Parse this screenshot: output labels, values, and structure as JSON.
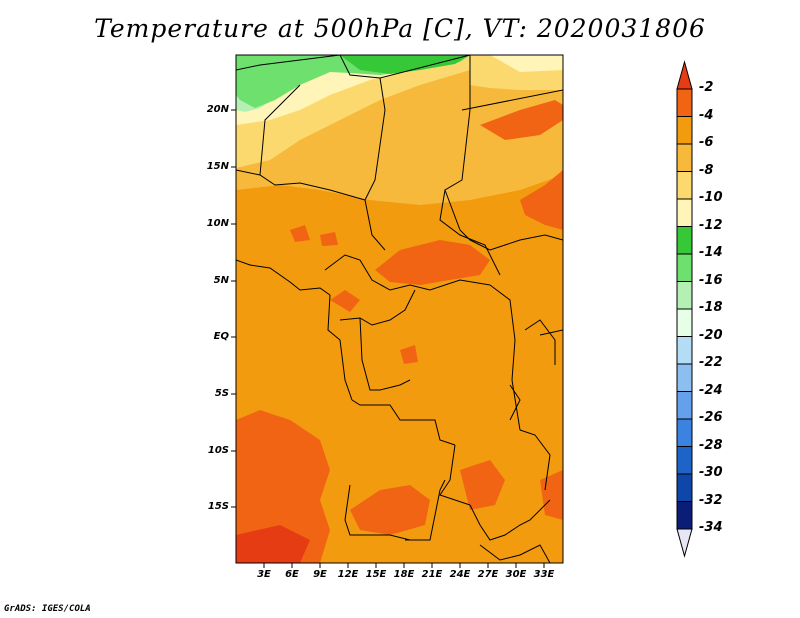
{
  "title": "Temperature at 500hPa [C], VT: 2020031806",
  "map": {
    "lat_labels": [
      "20N",
      "15N",
      "10N",
      "5N",
      "EQ",
      "5S",
      "10S",
      "15S"
    ],
    "lon_labels": [
      "3E",
      "6E",
      "9E",
      "12E",
      "15E",
      "18E",
      "21E",
      "24E",
      "27E",
      "30E",
      "33E"
    ]
  },
  "colorbar": {
    "labels": [
      "-2",
      "-4",
      "-6",
      "-8",
      "-10",
      "-12",
      "-14",
      "-16",
      "-18",
      "-20",
      "-22",
      "-24",
      "-26",
      "-28",
      "-30",
      "-32",
      "-34"
    ],
    "colors": [
      "#e63c14",
      "#f06414",
      "#f39b0f",
      "#f7b93c",
      "#fbd96e",
      "#fff5b9",
      "#37c837",
      "#6ee06e",
      "#b4f0b4",
      "#e6ffe6",
      "#b4dcf5",
      "#8cbef0",
      "#64a0eb",
      "#3c82e1",
      "#1e64c8",
      "#0f46aa",
      "#0a1e78",
      "#e6e6f5"
    ]
  },
  "credit": "GrADS: IGES/COLA"
}
